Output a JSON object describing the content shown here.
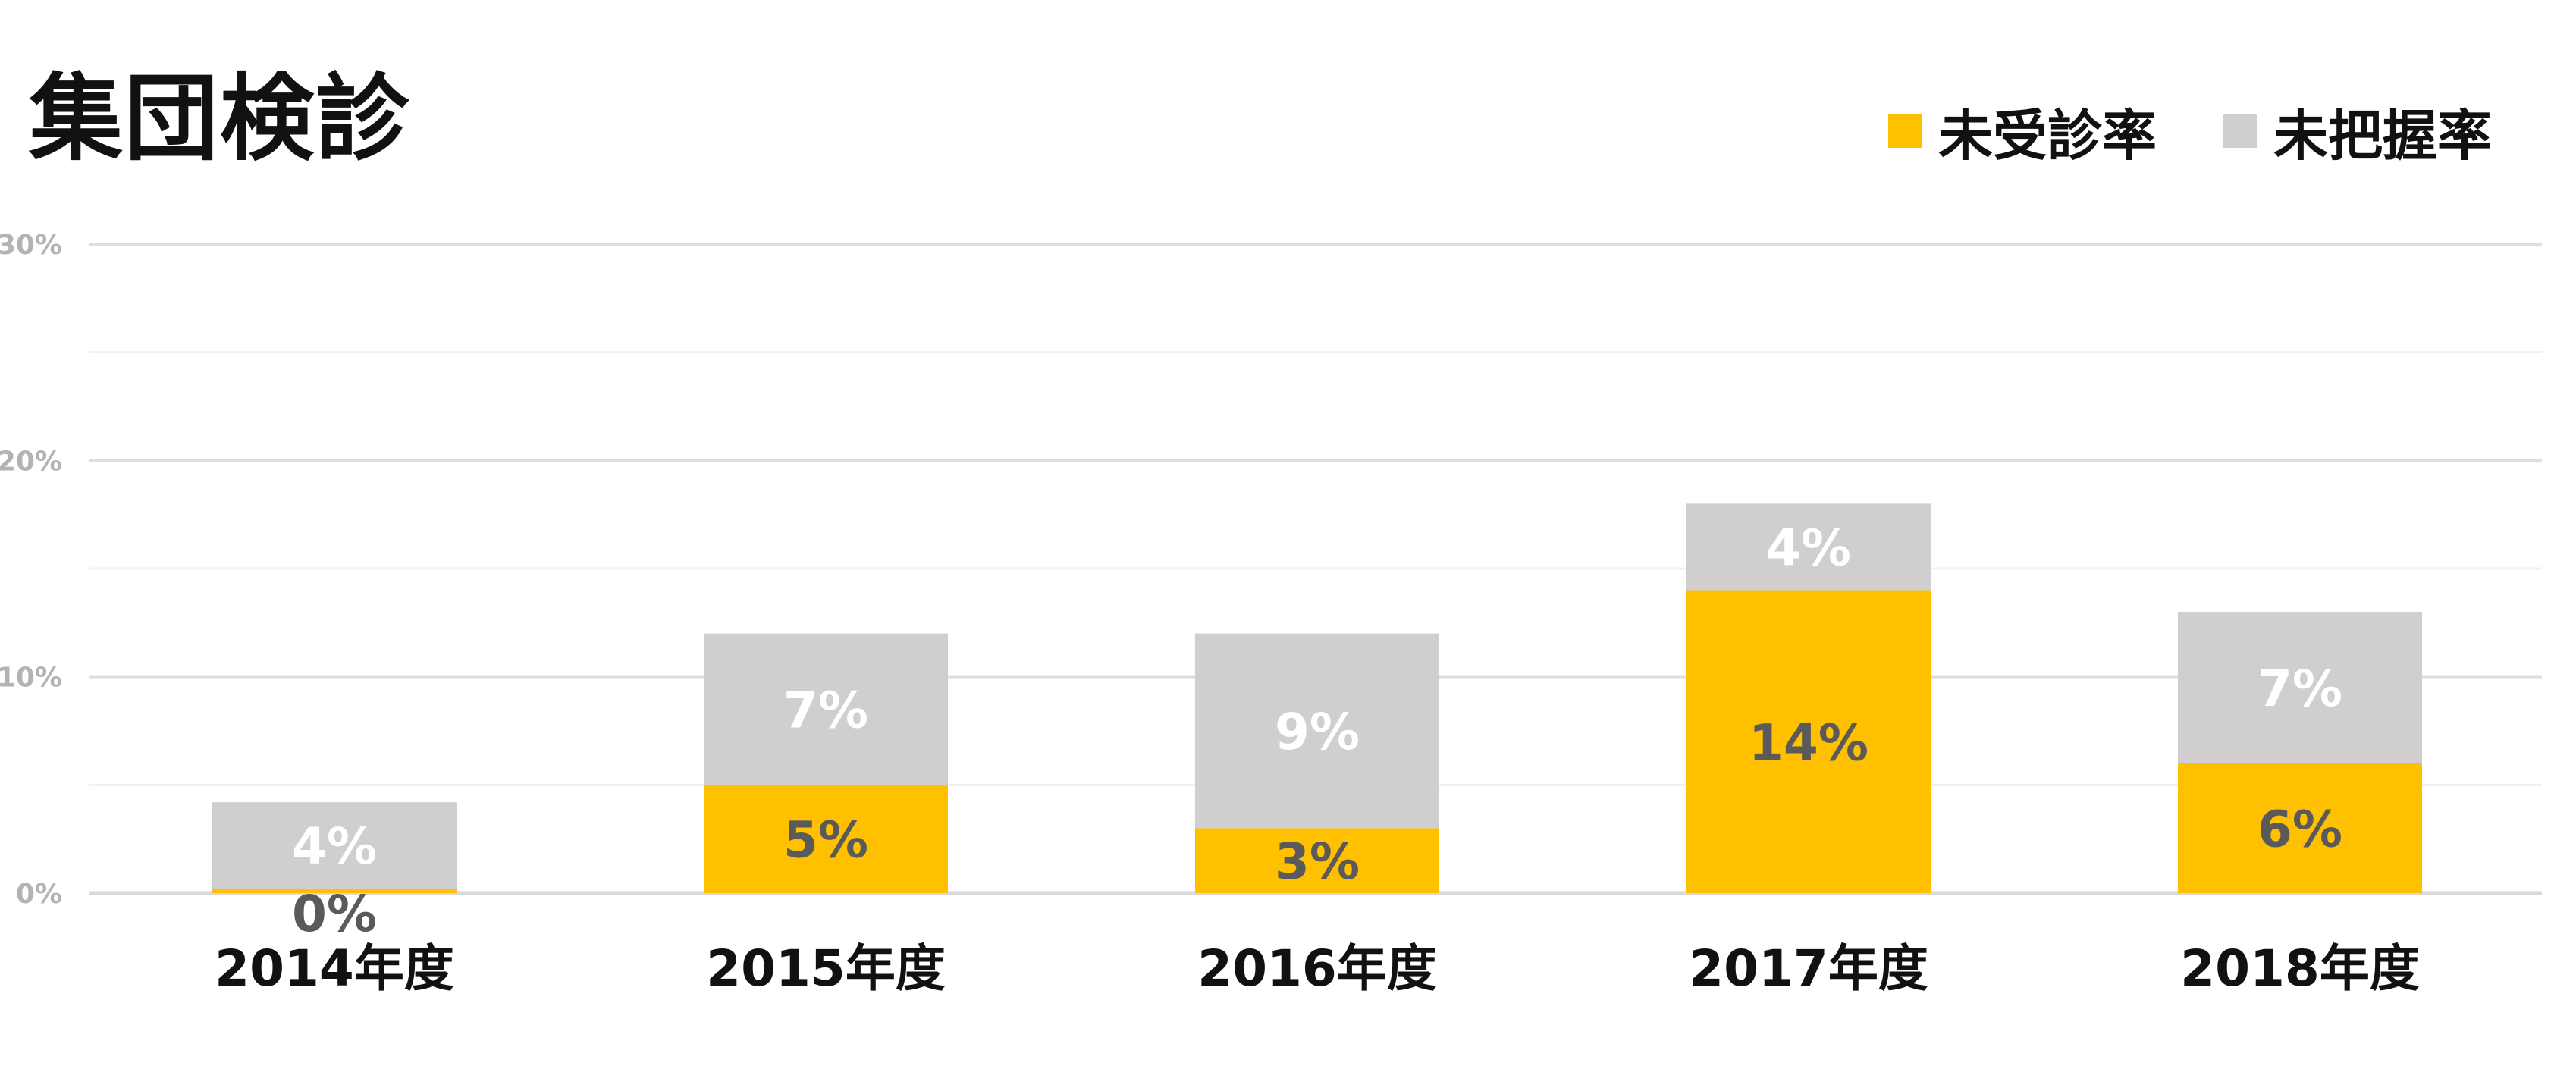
{
  "chart_data": {
    "type": "bar",
    "stacked": true,
    "title": "集団検診",
    "categories": [
      "2014年度",
      "2015年度",
      "2016年度",
      "2017年度",
      "2018年度"
    ],
    "series": [
      {
        "name": "未受診率",
        "color": "#FFC000",
        "label_color": "#5a5a5a",
        "values": [
          0.2,
          5,
          3,
          14,
          6
        ],
        "labels": [
          "0%",
          "5%",
          "3%",
          "14%",
          "6%"
        ]
      },
      {
        "name": "未把握率",
        "color": "#D0CECE",
        "label_color": "#ffffff",
        "values": [
          4,
          7,
          9,
          4,
          7
        ],
        "labels": [
          "4%",
          "7%",
          "9%",
          "4%",
          "7%"
        ]
      }
    ],
    "ylim": [
      0,
      30
    ],
    "yticks": [
      0,
      10,
      20,
      30
    ],
    "ytick_labels": [
      "0%",
      "10%",
      "20%",
      "30%"
    ],
    "minor_gridlines": [
      5,
      15,
      25
    ],
    "grid": true,
    "legend_position": "top-right",
    "colors": {
      "gridline": "#dddddd",
      "minor_gridline": "#f1f1f1",
      "axis": "#d9d9d9",
      "text": "#111111",
      "ytick_text": "#b3b3b3"
    }
  }
}
